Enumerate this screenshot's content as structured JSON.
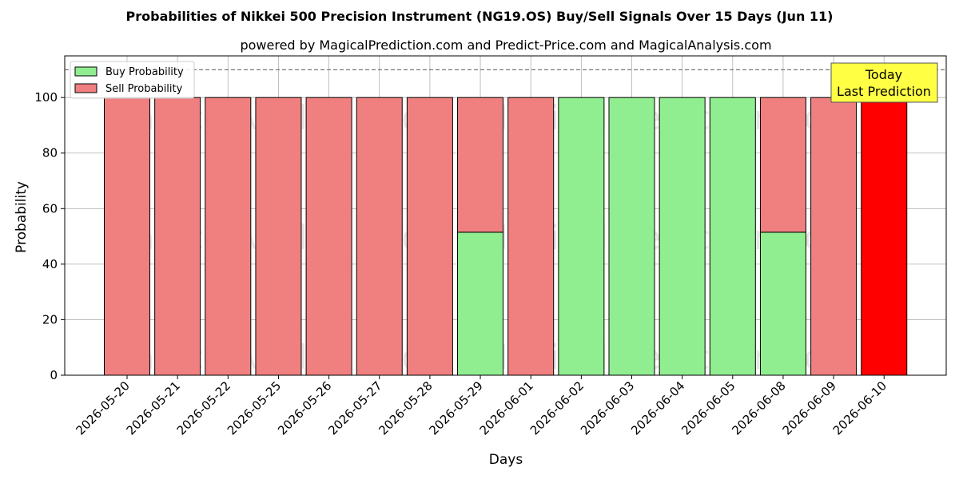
{
  "chart_data": {
    "type": "bar",
    "title": "Probabilities of Nikkei 500 Precision Instrument (NG19.OS) Buy/Sell Signals Over 15 Days (Jun 11)",
    "subtitle": "powered by MagicalPrediction.com and Predict-Price.com and MagicalAnalysis.com",
    "xlabel": "Days",
    "ylabel": "Probability",
    "ylim": [
      0,
      115
    ],
    "yticks": [
      0,
      20,
      40,
      60,
      80,
      100
    ],
    "grid": true,
    "legend_position": "top-left",
    "categories": [
      "2026-05-20",
      "2026-05-21",
      "2026-05-22",
      "2026-05-25",
      "2026-05-26",
      "2026-05-27",
      "2026-05-28",
      "2026-05-29",
      "2026-06-01",
      "2026-06-02",
      "2026-06-03",
      "2026-06-04",
      "2026-06-05",
      "2026-06-08",
      "2026-06-09",
      "2026-06-10"
    ],
    "series": [
      {
        "name": "Buy Probability",
        "color": "#90ee90",
        "values": [
          0,
          0,
          0,
          0,
          0,
          0,
          0,
          51.5,
          0,
          100,
          100,
          100,
          100,
          51.5,
          0,
          0
        ]
      },
      {
        "name": "Sell Probability",
        "color": "#f08080",
        "values": [
          100,
          100,
          100,
          100,
          100,
          100,
          100,
          48.5,
          100,
          0,
          0,
          0,
          0,
          48.5,
          100,
          100
        ]
      }
    ],
    "highlight": {
      "index": 15,
      "color": "#ff0000"
    },
    "reference_line": {
      "y": 110,
      "style": "dashed"
    },
    "annotation": {
      "lines": [
        "Today",
        "Last Prediction"
      ],
      "background": "#ffff44"
    },
    "watermarks": [
      "MagicalAnalysis.com",
      "MagicalPrediction.com"
    ]
  }
}
